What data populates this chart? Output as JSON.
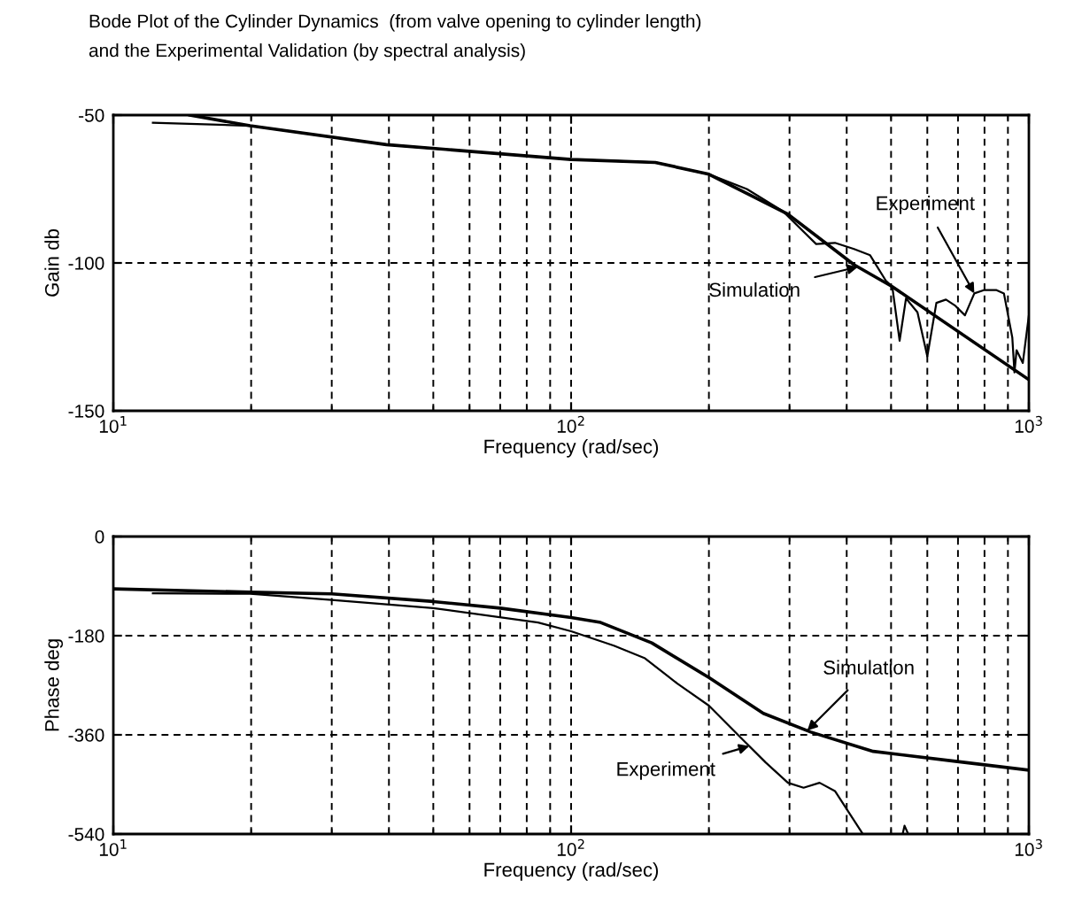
{
  "chart_data": [
    {
      "type": "line",
      "title": "Bode Plot of the Cylinder Dynamics  (from valve opening to cylinder length)\nand the Experimental Validation (by spectral analysis)",
      "xlabel": "Frequency (rad/sec)",
      "ylabel": "Gain db",
      "log": "x",
      "grid": true,
      "legend": false,
      "marker": "none",
      "line_style": "solid",
      "xlim": [
        10,
        1000
      ],
      "xticks": [
        {
          "value": 10,
          "label": "10$^{1}$"
        },
        {
          "value": 100,
          "label": "10$^{2}$"
        },
        {
          "value": 1000,
          "label": "10$^{3}$"
        }
      ],
      "ylim": [
        -150,
        -50
      ],
      "yticks": [
        -150,
        -100,
        -50
      ],
      "series": [
        {
          "name": "Simulation",
          "color": "#000000",
          "x": [
            14.7,
            19.9,
            39.5,
            100,
            152.7,
            200,
            297.6,
            415,
            503,
            1000
          ],
          "values": [
            -50,
            -53.6,
            -60,
            -65,
            -66,
            -70,
            -83.5,
            -100.6,
            -108,
            -139.5
          ]
        },
        {
          "name": "Experiment",
          "color": "#000000",
          "x": [
            12.2,
            19.9,
            39.5,
            100,
            152.7,
            200,
            242,
            290,
            343,
            377,
            415,
            450,
            487,
            503,
            522,
            539,
            571,
            600,
            628,
            659,
            691,
            725,
            760,
            797,
            850,
            882,
            920,
            930,
            940,
            970,
            1000
          ],
          "values": [
            -52.6,
            -53.6,
            -60,
            -65,
            -66,
            -70,
            -75,
            -82.5,
            -93.6,
            -93.2,
            -95.3,
            -97.4,
            -106,
            -108,
            -126.3,
            -112,
            -116.7,
            -131.6,
            -113.5,
            -112.4,
            -114.5,
            -117.7,
            -110.3,
            -109.2,
            -109.2,
            -110.3,
            -125.2,
            -137,
            -129.5,
            -133.8,
            -117.7
          ]
        }
      ],
      "tick_labels": "xy"
    },
    {
      "type": "line",
      "xlabel": "Frequency (rad/sec)",
      "ylabel": "Phase deg",
      "log": "x",
      "grid": true,
      "legend": false,
      "marker": "none",
      "line_style": "solid",
      "xlim": [
        10,
        1000
      ],
      "xticks": [
        {
          "value": 10,
          "label": "10$^{1}$"
        },
        {
          "value": 100,
          "label": "10$^{2}$"
        },
        {
          "value": 1000,
          "label": "10$^{3}$"
        }
      ],
      "ylim": [
        -540,
        0
      ],
      "yticks": [
        -540,
        -360,
        -180,
        0
      ],
      "series": [
        {
          "name": "Simulation",
          "color": "#000000",
          "x": [
            10,
            19.9,
            30,
            50,
            70,
            100,
            116,
            150,
            200,
            263,
            334,
            457,
            691,
            1000
          ],
          "values": [
            -95,
            -101,
            -104,
            -118,
            -130,
            -147,
            -156,
            -193,
            -256,
            -321,
            -355,
            -390,
            -408,
            -424
          ]
        },
        {
          "name": "Experiment",
          "color": "#000000",
          "x": [
            12.2,
            19.9,
            30,
            50,
            84.7,
            100,
            124,
            145,
            170.7,
            200,
            238,
            266,
            297.6,
            322,
            349,
            377,
            433,
            480,
            530,
            535,
            545
          ],
          "values": [
            -103,
            -104,
            -115,
            -130,
            -156,
            -172,
            -198,
            -221,
            -267,
            -307,
            -370,
            -410,
            -447,
            -456,
            -447,
            -462,
            -539,
            null,
            -540,
            -525,
            -540
          ]
        }
      ],
      "tick_labels": "xy"
    }
  ]
}
